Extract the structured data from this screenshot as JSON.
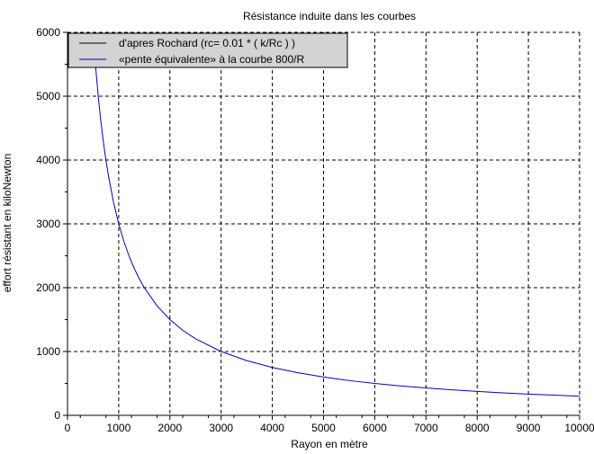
{
  "chart_data": {
    "type": "line",
    "title": "Résistance induite dans les courbes",
    "xlabel": "Rayon en mètre",
    "ylabel": "effort résistant en kiloNewton",
    "xlim": [
      0,
      10000
    ],
    "ylim": [
      0,
      6000
    ],
    "x_ticks": [
      0,
      1000,
      2000,
      3000,
      4000,
      5000,
      6000,
      7000,
      8000,
      9000,
      10000
    ],
    "y_ticks": [
      0,
      1000,
      2000,
      3000,
      4000,
      5000,
      6000
    ],
    "grid": true,
    "legend_position": "top-left",
    "series": [
      {
        "name": "d'apres Rochard (rc= 0.01 * ( k/Rc ) )",
        "color": "#000000",
        "x": [],
        "y": []
      },
      {
        "name": "«pente équivalente» à la courbe 800/R",
        "color": "#0000cc",
        "x": [
          500,
          525,
          550,
          600,
          650,
          700,
          750,
          800,
          900,
          1000,
          1100,
          1200,
          1300,
          1400,
          1500,
          1750,
          2000,
          2250,
          2500,
          3000,
          3500,
          4000,
          4500,
          5000,
          5500,
          6000,
          6500,
          7000,
          7500,
          8000,
          8500,
          9000,
          9500,
          10000
        ],
        "y": [
          6000,
          5714,
          5455,
          5000,
          4615,
          4286,
          4000,
          3750,
          3333,
          3000,
          2727,
          2500,
          2308,
          2143,
          2000,
          1714,
          1500,
          1333,
          1200,
          1000,
          857,
          750,
          667,
          600,
          545,
          500,
          462,
          429,
          400,
          375,
          353,
          333,
          316,
          300
        ]
      }
    ]
  }
}
